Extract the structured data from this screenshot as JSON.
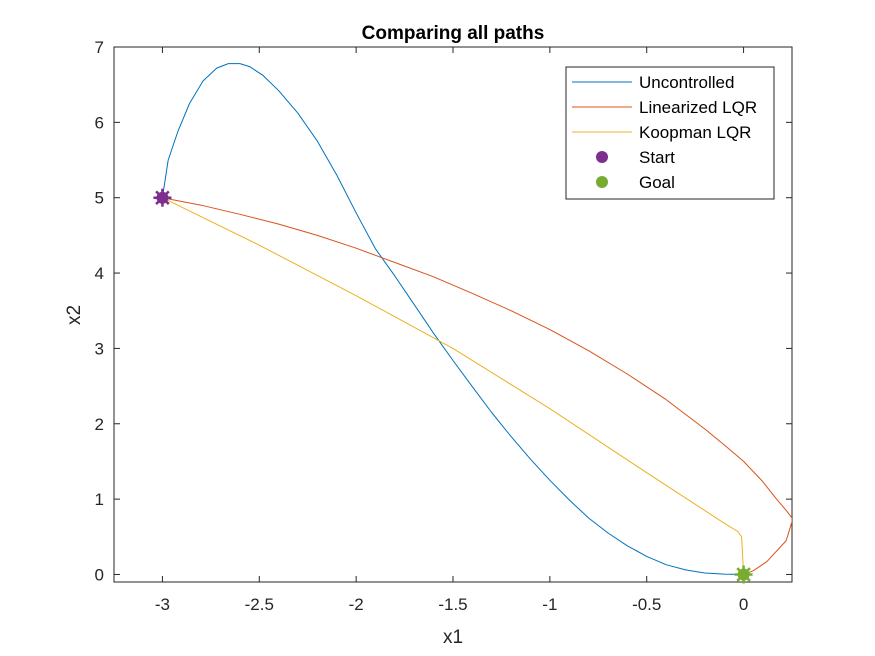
{
  "chart_data": {
    "type": "line",
    "title": "Comparing all paths",
    "xlabel": "x1",
    "ylabel": "x2",
    "xlim": [
      -3.25,
      0.25
    ],
    "ylim": [
      -0.1,
      7
    ],
    "xticks": [
      -3,
      -2.5,
      -2,
      -1.5,
      -1,
      -0.5,
      0
    ],
    "xtick_labels": [
      "-3",
      "-2.5",
      "-2",
      "-1.5",
      "-1",
      "-0.5",
      "0"
    ],
    "yticks": [
      0,
      1,
      2,
      3,
      4,
      5,
      6,
      7
    ],
    "ytick_labels": [
      "0",
      "1",
      "2",
      "3",
      "4",
      "5",
      "6",
      "7"
    ],
    "grid": false,
    "legend_position": "top-right",
    "series": [
      {
        "name": "Uncontrolled",
        "color": "#0072BD",
        "x": [
          -3.0,
          -2.97,
          -2.92,
          -2.86,
          -2.79,
          -2.72,
          -2.66,
          -2.6,
          -2.55,
          -2.48,
          -2.4,
          -2.3,
          -2.2,
          -2.1,
          -2.0,
          -1.9,
          -1.8,
          -1.7,
          -1.6,
          -1.5,
          -1.4,
          -1.3,
          -1.2,
          -1.1,
          -1.0,
          -0.9,
          -0.8,
          -0.7,
          -0.6,
          -0.5,
          -0.4,
          -0.3,
          -0.2,
          -0.1,
          0.0
        ],
        "y": [
          5.0,
          5.5,
          5.88,
          6.25,
          6.55,
          6.72,
          6.78,
          6.78,
          6.74,
          6.62,
          6.42,
          6.12,
          5.75,
          5.3,
          4.8,
          4.32,
          3.96,
          3.58,
          3.2,
          2.84,
          2.49,
          2.15,
          1.83,
          1.53,
          1.25,
          0.99,
          0.75,
          0.55,
          0.38,
          0.24,
          0.13,
          0.06,
          0.02,
          0.005,
          0.0
        ]
      },
      {
        "name": "Linearized LQR",
        "color": "#D95319",
        "x": [
          -3.0,
          -2.8,
          -2.6,
          -2.4,
          -2.2,
          -2.0,
          -1.8,
          -1.6,
          -1.4,
          -1.2,
          -1.0,
          -0.8,
          -0.6,
          -0.4,
          -0.2,
          -0.1,
          0.0,
          0.1,
          0.17,
          0.22,
          0.25,
          0.25,
          0.22,
          0.12,
          0.05,
          0.0
        ],
        "y": [
          5.0,
          4.9,
          4.78,
          4.65,
          4.5,
          4.33,
          4.14,
          3.95,
          3.73,
          3.5,
          3.25,
          2.97,
          2.66,
          2.32,
          1.93,
          1.72,
          1.5,
          1.23,
          1.0,
          0.85,
          0.75,
          0.7,
          0.45,
          0.17,
          0.05,
          0.0
        ]
      },
      {
        "name": "Koopman LQR",
        "color": "#EDB120",
        "x": [
          -3.0,
          -2.5,
          -2.0,
          -1.5,
          -1.0,
          -0.5,
          -0.1,
          -0.03,
          -0.01,
          0.0
        ],
        "y": [
          5.0,
          4.37,
          3.7,
          3.0,
          2.2,
          1.35,
          0.68,
          0.57,
          0.5,
          0.0
        ]
      }
    ],
    "markers": [
      {
        "name": "Start",
        "x": -3.0,
        "y": 5.0,
        "color": "#7E2F8E"
      },
      {
        "name": "Goal",
        "x": 0.0,
        "y": 0.0,
        "color": "#77AC30"
      }
    ]
  }
}
